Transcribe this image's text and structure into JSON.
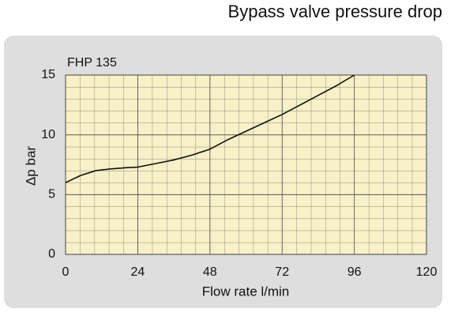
{
  "chart_data": {
    "type": "line",
    "title": "Bypass valve pressure drop",
    "label": "FHP 135",
    "xlabel": "Flow rate l/min",
    "ylabel": "Δp bar",
    "xlim": [
      0,
      120
    ],
    "ylim": [
      0,
      15
    ],
    "xticks": [
      0,
      24,
      48,
      72,
      96,
      120
    ],
    "yticks": [
      0,
      5,
      10,
      15
    ],
    "grid": true,
    "series": [
      {
        "color": "#111111",
        "x": [
          0,
          5,
          10,
          15,
          20,
          24,
          30,
          36,
          42,
          48,
          54,
          60,
          66,
          72,
          78,
          84,
          90,
          96
        ],
        "values": [
          6,
          6.6,
          7,
          7.15,
          7.25,
          7.3,
          7.6,
          7.9,
          8.3,
          8.8,
          9.6,
          10.3,
          11,
          11.7,
          12.5,
          13.3,
          14.1,
          15
        ]
      }
    ]
  }
}
